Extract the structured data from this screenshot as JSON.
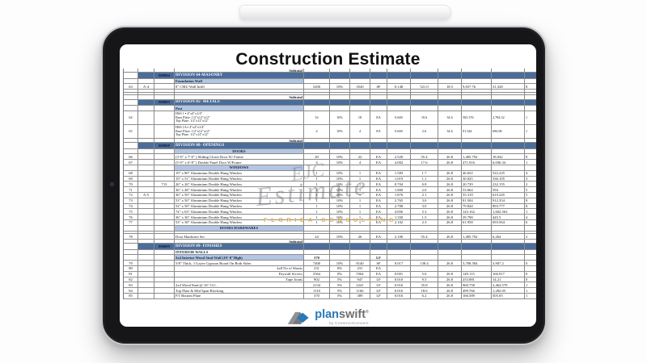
{
  "title": "Construction Estimate",
  "colors": {
    "division_bar": "#4a6d9b",
    "subheader_blue": "#b3c7e3",
    "brand_blue": "#2878b8",
    "brand_gray": "#6f7073",
    "watermark_gold": "#e0a536"
  },
  "watermark": {
    "monogram": "EJC",
    "script": "Estimate",
    "subtext": "FLORIDA CONSULTING"
  },
  "logo": {
    "plan": "plan",
    "swift": "swift",
    "reg": "®",
    "tagline": "by ConstructConnect"
  },
  "table": {
    "rows": [
      {
        "type": "subtotal",
        "label": "Subtotal"
      },
      {
        "type": "division",
        "num": "000004",
        "title": "DIVISION 04-MASONRY"
      },
      {
        "type": "subhead",
        "label": "Foundation Wall",
        "align": "left"
      },
      {
        "type": "item",
        "cells": [
          "63",
          "A-4",
          "",
          "8\" CMU Wall Infill",
          "3200",
          "10%",
          "3520",
          "SF",
          "0.148",
          "521.0",
          "18.5",
          "9,657.76",
          "31,328",
          "8"
        ]
      },
      {
        "type": "blank"
      },
      {
        "type": "blank"
      },
      {
        "type": "subtotal",
        "label": "Subtotal"
      },
      {
        "type": "division",
        "num": "000005",
        "title": "DIVISION 05- METALS"
      },
      {
        "type": "subhead",
        "label": "Post",
        "align": "left"
      },
      {
        "type": "item",
        "tall": true,
        "cells": [
          "64",
          "",
          "",
          [
            "HSS 1 ▪ 4\"x4\"x1/4\"",
            "Base Plate: 1/2\"x12\"x12\"",
            "Top Plate: 1/2\"x12\"x12\""
          ],
          "16",
          "10%",
          "18",
          "EA",
          "0.600",
          "10.6",
          "34.6",
          "565.376",
          "2,784.32",
          "1"
        ]
      },
      {
        "type": "item",
        "tall": true,
        "cells": [
          "65",
          "",
          "",
          [
            "HSS 1A ▪ 4\"x4\"x1/4\"",
            "Base Plate: 1/2\"x12\"x12\"",
            "Top Plate: 1/2\"x12\"x12\""
          ],
          "4",
          "10%",
          "4",
          "EA",
          "0.600",
          "2.6",
          "34.6",
          "91.344",
          "696.08",
          "1"
        ]
      },
      {
        "type": "subtotal",
        "label": "Subtotal"
      },
      {
        "type": "division",
        "num": "000008",
        "title": "DIVISION 08- OPENINGS"
      },
      {
        "type": "subhead",
        "label": "DOORS",
        "align": "center"
      },
      {
        "type": "item",
        "cells": [
          "66",
          "",
          "",
          "(3'-0\" x 7'-0\" ) Sliding Closet Door W/ Frame",
          "20",
          "10%",
          "22",
          "EA",
          "2.520",
          "55.4",
          "26.8",
          "1,485.792",
          "18,942",
          "8"
        ]
      },
      {
        "type": "item",
        "cells": [
          "67",
          "",
          "",
          "(5'-0\" x 6'-8\" ) Double Panel Door W/Frame",
          "4",
          "10%",
          "4",
          "EA",
          "4.002",
          "17.6",
          "26.8",
          "471.916",
          "6,036.34",
          "1"
        ]
      },
      {
        "type": "subhead",
        "label": "WINDOWS",
        "align": "center"
      },
      {
        "type": "item",
        "cells": [
          "68",
          "",
          "",
          "19\" x 80\" Aluminium Double Hung Window",
          "1",
          "10%",
          "1",
          "EA",
          "1.583",
          "1.7",
          "26.8",
          "46.652",
          "522.225",
          "4"
        ]
      },
      {
        "type": "item",
        "cells": [
          "69",
          "",
          "",
          "19\" x 51\" Aluminium Double Hung Window",
          "1",
          "10%",
          "1",
          "EA",
          "1.019",
          "1.1",
          "26.8",
          "30.025",
          "336.105",
          "3"
        ]
      },
      {
        "type": "item",
        "cells": [
          "70",
          "",
          "713",
          "26\" x 26\" Aluminium Double Hung Window",
          "1",
          "10%",
          "1",
          "EA",
          "0.704",
          "0.8",
          "26.8",
          "20.739",
          "232.155",
          "2"
        ]
      },
      {
        "type": "item",
        "cells": [
          "71",
          "",
          "",
          "36\" x 48\" Aluminium Double Hung Window",
          "1",
          "10%",
          "1",
          "EA",
          "1.800",
          "2.0",
          "26.8",
          "53.064",
          "594",
          "5"
        ]
      },
      {
        "type": "item",
        "cells": [
          "72",
          "A-5",
          "",
          "36\" x 50\" Aluminium Double Hung Window",
          "1",
          "10%",
          "1",
          "EA",
          "1.876",
          "2.1",
          "26.8",
          "55.319",
          "619.245",
          "5"
        ]
      },
      {
        "type": "item",
        "cells": [
          "73",
          "",
          "",
          "53\" x 50\" Aluminium Double Hung Window",
          "1",
          "10%",
          "1",
          "EA",
          "2.765",
          "3.0",
          "26.8",
          "81.504",
          "912.354",
          "8"
        ]
      },
      {
        "type": "item",
        "cells": [
          "74",
          "",
          "",
          "52\" x 50\" Aluminium Double Hung Window",
          "1",
          "10%",
          "1",
          "EA",
          "2.708",
          "3.0",
          "26.8",
          "79.844",
          "893.777",
          "8"
        ]
      },
      {
        "type": "item",
        "cells": [
          "75",
          "",
          "",
          "74\" x 63\" Aluminium Double Hung Window",
          "1",
          "10%",
          "1",
          "EA",
          "4.856",
          "5.3",
          "26.8",
          "143.162",
          "1,602.563",
          "1"
        ]
      },
      {
        "type": "item",
        "cells": [
          "76",
          "",
          "",
          "36\" x 36\" Aluminium Double Hung Window",
          "1",
          "10%",
          "1",
          "EA",
          "1.350",
          "1.5",
          "26.8",
          "39.798",
          "445.5",
          "4"
        ]
      },
      {
        "type": "item",
        "cells": [
          "77",
          "",
          "",
          "53\" x 38\" Aluminium Double Hung Window",
          "1",
          "10%",
          "1",
          "EA",
          "2.102",
          "2.3",
          "26.8",
          "61.958",
          "693.564",
          "6"
        ]
      },
      {
        "type": "subhead",
        "label": "DOORS HARDWARES",
        "align": "center"
      },
      {
        "type": "blank"
      },
      {
        "type": "item",
        "cells": [
          "78",
          "",
          "",
          "Door Hardware Set",
          "24",
          "10%",
          "26",
          "EA",
          "2.100",
          "55.4",
          "26.8",
          "1,485.792",
          "6,264",
          "2"
        ]
      },
      {
        "type": "subtotal",
        "label": "Subtotal"
      },
      {
        "type": "division",
        "num": "000009",
        "title": "DIVISION 09- FINISHES"
      },
      {
        "type": "subhead_plain",
        "label": "INTERIOR WALLS"
      },
      {
        "type": "feature",
        "cells": [
          "",
          "",
          "",
          "2x4 Interior Wood Stud Wall  (10'-0\"High)",
          "370",
          "",
          "",
          "LF",
          "",
          "",
          "",
          "",
          "",
          ""
        ]
      },
      {
        "type": "item",
        "cells": [
          "79",
          "",
          "",
          "5/8\" Thick, 1-Layer Gypsum Board On Both Sides",
          "7400",
          "10%",
          "8140",
          "SF",
          "0.017",
          "138.4",
          "26.8",
          "3,708.584",
          "3,907.2",
          "0"
        ]
      },
      {
        "type": "item",
        "desc_align": "right",
        "cells": [
          "80",
          "",
          "",
          "4x8 No of  Sheets",
          "231",
          "0%",
          "231",
          "EA",
          "",
          "",
          "",
          "",
          "",
          ""
        ]
      },
      {
        "type": "item",
        "desc_align": "right",
        "cells": [
          "81",
          "",
          "",
          "Drywall Screws",
          "5564",
          "0%",
          "5564",
          "EA",
          "0.001",
          "5.6",
          "26.8",
          "149.115",
          "166.917",
          "0"
        ]
      },
      {
        "type": "item",
        "desc_align": "right",
        "cells": [
          "82",
          "",
          "",
          "Tape Joints",
          "902",
          "5%",
          "947",
          "LF",
          "0.010",
          "9.5",
          "26.8",
          "253.881",
          "14.21",
          "0"
        ]
      },
      {
        "type": "item",
        "cells": [
          "83",
          "",
          "",
          "2x4 Wood Stud @ 16\" O.C.",
          "2134",
          "5%",
          "2241",
          "LF",
          "0.016",
          "35.8",
          "26.8",
          "960.758",
          "2,464.579",
          "1"
        ]
      },
      {
        "type": "item",
        "cells": [
          "84",
          "",
          "",
          "Top Plate & Mid Span Blocking",
          "1110",
          "5%",
          "1166",
          "LF",
          "0.016",
          "18.6",
          "26.8",
          "499.766",
          "1,282.05",
          "1"
        ]
      },
      {
        "type": "item",
        "cells": [
          "85",
          "",
          "",
          "P.T Bottom Plate",
          "370",
          "5%",
          "389",
          "LF",
          "0.016",
          "6.2",
          "26.8",
          "166.589",
          "505.05",
          "1"
        ]
      }
    ]
  }
}
